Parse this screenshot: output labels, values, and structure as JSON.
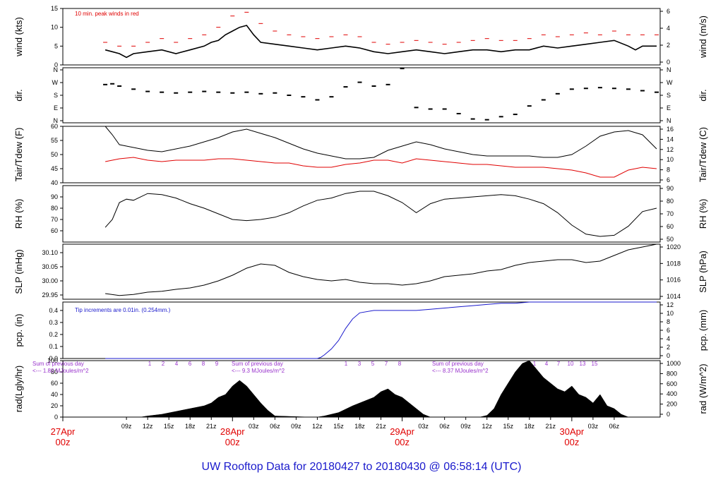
{
  "title": "UW Rooftop Data for 20180427  to  20180430 @ 06:58:14  (UTC)",
  "colors": {
    "primary": "#000000",
    "peak": "#e00000",
    "dew": "#e00000",
    "pcp": "#1a1acc",
    "sun": "#9933cc",
    "title": "#1a1acc",
    "day": "#e00000"
  },
  "chart_data": [
    {
      "type": "line",
      "key": "wind",
      "ylabel_left": "wind (kts)",
      "ylabel_right": "wind (m/s)",
      "ylim": [
        0,
        15
      ],
      "yticks_left": [
        "0",
        "5",
        "10",
        "15"
      ],
      "yticks_right": [
        "0",
        "2",
        "4",
        "6"
      ],
      "annotation": "10 min. peak winds in red",
      "series": [
        {
          "name": "wind",
          "color": "#000000",
          "x": [
            0,
            1,
            2,
            3,
            4,
            6,
            8,
            10,
            12,
            14,
            15,
            16,
            17,
            18,
            19,
            20,
            21,
            22,
            24,
            26,
            28,
            30,
            32,
            34,
            36,
            38,
            40,
            42,
            44,
            46,
            48,
            50,
            52,
            54,
            56,
            58,
            60,
            62,
            64,
            66,
            68,
            70,
            72,
            74,
            75,
            76,
            78
          ],
          "values": [
            4,
            3.5,
            3,
            2,
            3,
            3.5,
            4,
            3,
            4,
            5,
            6,
            6.5,
            8,
            9,
            10,
            10.5,
            8,
            6,
            5.5,
            5,
            4.5,
            4,
            4.5,
            5,
            4.5,
            3.5,
            3,
            3.5,
            4,
            3.5,
            3,
            3.5,
            4,
            4,
            3.5,
            4,
            4,
            5,
            4.5,
            5,
            5.5,
            6,
            6.5,
            5,
            4,
            5,
            5
          ]
        },
        {
          "name": "peak",
          "color": "#e00000",
          "x": [
            0,
            2,
            4,
            6,
            8,
            10,
            12,
            14,
            16,
            18,
            20,
            22,
            24,
            26,
            28,
            30,
            32,
            34,
            36,
            38,
            40,
            42,
            44,
            46,
            48,
            50,
            52,
            54,
            56,
            58,
            60,
            62,
            64,
            66,
            68,
            70,
            72,
            74,
            76,
            78
          ],
          "values": [
            6,
            5,
            5,
            6,
            7,
            6,
            7,
            8,
            10,
            13,
            14,
            11,
            9,
            8,
            7.5,
            7,
            7.5,
            8,
            7.5,
            6,
            5.5,
            6,
            6.5,
            6,
            5.5,
            6,
            6.5,
            7,
            6.5,
            6.5,
            7,
            8,
            7.5,
            8,
            8.5,
            8,
            9,
            8,
            8,
            8
          ]
        }
      ]
    },
    {
      "type": "scatter",
      "key": "dir",
      "ylabel_left": "dir.",
      "ylabel_right": "dir.",
      "ylim": [
        0,
        360
      ],
      "yticks_left": [
        "N",
        "E",
        "S",
        "W",
        "N"
      ],
      "yticks_right": [
        "N",
        "E",
        "S",
        "W",
        "N"
      ],
      "series": [
        {
          "name": "direction",
          "color": "#000000",
          "x": [
            0,
            1,
            2,
            4,
            6,
            8,
            10,
            12,
            14,
            16,
            18,
            20,
            22,
            24,
            26,
            28,
            30,
            32,
            34,
            36,
            38,
            40,
            42,
            44,
            46,
            48,
            50,
            52,
            54,
            56,
            58,
            60,
            62,
            64,
            66,
            68,
            70,
            72,
            74,
            76,
            78
          ],
          "values": [
            250,
            255,
            240,
            220,
            205,
            200,
            195,
            200,
            205,
            200,
            195,
            200,
            190,
            195,
            180,
            170,
            150,
            170,
            235,
            265,
            240,
            250,
            355,
            100,
            90,
            90,
            60,
            25,
            20,
            40,
            55,
            110,
            150,
            190,
            220,
            225,
            230,
            225,
            220,
            210,
            200
          ]
        }
      ]
    },
    {
      "type": "line",
      "key": "temp",
      "ylabel_left": "Tair/Tdew (F)",
      "ylabel_right": "Tair/Tdew (C)",
      "ylim": [
        40,
        60
      ],
      "yticks_left": [
        "40",
        "45",
        "50",
        "55",
        "60"
      ],
      "yticks_right": [
        "6",
        "8",
        "10",
        "12",
        "14",
        "16"
      ],
      "series": [
        {
          "name": "Tair",
          "color": "#000000",
          "x": [
            0,
            1,
            2,
            3,
            4,
            6,
            8,
            10,
            12,
            14,
            16,
            18,
            20,
            22,
            24,
            26,
            28,
            30,
            32,
            34,
            36,
            38,
            40,
            42,
            44,
            46,
            48,
            50,
            52,
            54,
            56,
            58,
            60,
            62,
            64,
            66,
            68,
            70,
            72,
            74,
            76,
            78
          ],
          "values": [
            60,
            57,
            53.5,
            53,
            52.5,
            51.5,
            51,
            52,
            53,
            54.5,
            56,
            58,
            59,
            57.5,
            56,
            54,
            52,
            50.5,
            49.5,
            48.5,
            48.5,
            49,
            51.5,
            53,
            54.5,
            53.5,
            52,
            51,
            50,
            49.5,
            49.5,
            49.5,
            49.5,
            49,
            49,
            50,
            53,
            56.5,
            58,
            58.5,
            57,
            52
          ]
        },
        {
          "name": "Tdew",
          "color": "#e00000",
          "x": [
            0,
            2,
            4,
            6,
            8,
            10,
            12,
            14,
            16,
            18,
            20,
            22,
            24,
            26,
            28,
            30,
            32,
            34,
            36,
            38,
            40,
            42,
            44,
            46,
            48,
            50,
            52,
            54,
            56,
            58,
            60,
            62,
            64,
            66,
            68,
            70,
            72,
            74,
            76,
            78
          ],
          "values": [
            47.5,
            48.5,
            49,
            48,
            47.5,
            48,
            48,
            48,
            48.5,
            48.5,
            48,
            47.5,
            47,
            47,
            46,
            45.5,
            45.5,
            46.5,
            47,
            48,
            48,
            47,
            48.5,
            48,
            47.5,
            47,
            46.5,
            46.5,
            46,
            45.5,
            45.5,
            45.5,
            45,
            44.5,
            43.5,
            42,
            42,
            44.5,
            45.5,
            45
          ]
        }
      ]
    },
    {
      "type": "line",
      "key": "rh",
      "ylabel_left": "RH (%)",
      "ylabel_right": "RH (%)",
      "ylim": [
        50,
        100
      ],
      "yticks_left": [
        "60",
        "70",
        "80",
        "90"
      ],
      "yticks_right": [
        "50",
        "60",
        "70",
        "80",
        "90"
      ],
      "series": [
        {
          "name": "RH",
          "color": "#000000",
          "x": [
            0,
            1,
            2,
            3,
            4,
            6,
            8,
            10,
            12,
            14,
            16,
            18,
            20,
            22,
            24,
            26,
            28,
            30,
            32,
            34,
            36,
            38,
            40,
            42,
            44,
            46,
            48,
            50,
            52,
            54,
            56,
            58,
            60,
            62,
            64,
            66,
            68,
            70,
            72,
            74,
            76,
            78
          ],
          "values": [
            63,
            70,
            85,
            88,
            87,
            93,
            92,
            89,
            84,
            80,
            75,
            70,
            69,
            70,
            72,
            76,
            82,
            87,
            89,
            93,
            95,
            95,
            91,
            85,
            76,
            84,
            88,
            89,
            90,
            91,
            92,
            91,
            88,
            84,
            76,
            65,
            57,
            55,
            56,
            64,
            77,
            80
          ]
        }
      ]
    },
    {
      "type": "line",
      "key": "slp",
      "ylabel_left": "SLP (inHg)",
      "ylabel_right": "SLP (hPa)",
      "ylim": [
        29.935,
        30.13
      ],
      "yticks_left": [
        "29.95",
        "30.00",
        "30.05",
        "30.10"
      ],
      "yticks_right": [
        "1014",
        "1016",
        "1018",
        "1020"
      ],
      "series": [
        {
          "name": "SLP",
          "color": "#000000",
          "x": [
            0,
            2,
            4,
            6,
            8,
            10,
            12,
            14,
            16,
            18,
            20,
            22,
            24,
            26,
            28,
            30,
            32,
            34,
            36,
            38,
            40,
            42,
            44,
            46,
            48,
            50,
            52,
            54,
            56,
            58,
            60,
            62,
            64,
            66,
            68,
            70,
            72,
            74,
            76,
            78
          ],
          "values": [
            29.955,
            29.948,
            29.952,
            29.96,
            29.963,
            29.97,
            29.975,
            29.985,
            30.0,
            30.02,
            30.045,
            30.06,
            30.055,
            30.03,
            30.015,
            30.005,
            30.0,
            30.005,
            29.995,
            29.99,
            29.99,
            29.985,
            29.99,
            30.0,
            30.015,
            30.02,
            30.025,
            30.035,
            30.04,
            30.055,
            30.065,
            30.07,
            30.075,
            30.075,
            30.065,
            30.07,
            30.09,
            30.11,
            30.12,
            30.13
          ]
        }
      ]
    },
    {
      "type": "line",
      "key": "pcp",
      "ylabel_left": "pcp. (in)",
      "ylabel_right": "pcp. (mm)",
      "ylim": [
        0,
        0.47
      ],
      "yticks_left": [
        "0.0",
        "0.1",
        "0.2",
        "0.3",
        "0.4"
      ],
      "yticks_right": [
        "0",
        "2",
        "4",
        "6",
        "8",
        "10",
        "12"
      ],
      "annotation": "Tip increments are 0.01in. (0.254mm.)",
      "series": [
        {
          "name": "precip",
          "color": "#1a1acc",
          "x": [
            0,
            30,
            30.5,
            31,
            32,
            33,
            34,
            35,
            36,
            38,
            40,
            41,
            43,
            44,
            46,
            48,
            50,
            52,
            54,
            56,
            58,
            60,
            70,
            78
          ],
          "values": [
            0,
            0,
            0.01,
            0.03,
            0.08,
            0.15,
            0.25,
            0.33,
            0.38,
            0.4,
            0.4,
            0.4,
            0.4,
            0.4,
            0.41,
            0.42,
            0.43,
            0.44,
            0.45,
            0.46,
            0.46,
            0.47,
            0.47,
            0.47
          ]
        }
      ]
    },
    {
      "type": "area",
      "key": "rad",
      "ylabel_left": "rad(Lgly/hr)",
      "ylabel_right": "rad (W/m^2)",
      "ylim": [
        0,
        100
      ],
      "yticks_left": [
        "0",
        "20",
        "40",
        "60",
        "80",
        "100"
      ],
      "yticks_right": [
        "0",
        "200",
        "400",
        "600",
        "800",
        "1000"
      ],
      "sums": [
        {
          "label": "Sum of previous day",
          "value": "<--- 1.80 MJoules/m^2",
          "hours": [
            "1",
            "2",
            "4",
            "6",
            "8",
            "9"
          ]
        },
        {
          "label": "Sum of previous day",
          "value": "<--- 9.3 MJoules/m^2",
          "hours": [
            "1",
            "3",
            "5",
            "7",
            "8"
          ]
        },
        {
          "label": "Sum of previous day",
          "value": "<--- 8.37 MJoules/m^2",
          "hours": [
            "1",
            "4",
            "7",
            "10",
            "13",
            "15"
          ]
        }
      ],
      "series": [
        {
          "name": "radiation",
          "color": "#000000",
          "x": [
            0,
            5,
            6,
            8,
            10,
            12,
            14,
            15,
            16,
            17,
            18,
            19,
            20,
            21,
            22,
            23,
            24,
            29,
            30,
            31,
            33,
            35,
            37,
            38,
            39,
            40,
            41,
            42,
            43,
            44,
            45,
            46,
            53,
            54,
            55,
            56,
            57,
            58,
            59,
            60,
            61,
            62,
            63,
            64,
            65,
            66,
            67,
            68,
            69,
            70,
            71,
            72,
            73,
            74,
            78
          ],
          "values": [
            0,
            0,
            2,
            5,
            10,
            15,
            20,
            25,
            35,
            40,
            55,
            65,
            55,
            40,
            25,
            12,
            2,
            0,
            0,
            2,
            8,
            20,
            30,
            35,
            45,
            50,
            40,
            35,
            25,
            15,
            5,
            0,
            0,
            3,
            15,
            40,
            60,
            80,
            95,
            100,
            85,
            70,
            60,
            50,
            45,
            55,
            40,
            35,
            25,
            40,
            20,
            15,
            5,
            0,
            0
          ]
        }
      ]
    }
  ],
  "x_axis": {
    "ticks": [
      "09z",
      "12z",
      "15z",
      "18z",
      "21z",
      "03z",
      "06z",
      "09z",
      "12z",
      "15z",
      "18z",
      "21z",
      "03z",
      "06z",
      "09z",
      "12z",
      "15z",
      "18z",
      "21z",
      "03z",
      "06z"
    ],
    "tick_hours": [
      3,
      6,
      9,
      12,
      15,
      21,
      24,
      27,
      30,
      33,
      36,
      39,
      45,
      48,
      51,
      54,
      57,
      60,
      63,
      69,
      72
    ],
    "days": [
      {
        "date": "27Apr",
        "time": "00z",
        "hour": -6
      },
      {
        "date": "28Apr",
        "time": "00z",
        "hour": 18
      },
      {
        "date": "29Apr",
        "time": "00z",
        "hour": 42
      },
      {
        "date": "30Apr",
        "time": "00z",
        "hour": 66
      }
    ]
  }
}
